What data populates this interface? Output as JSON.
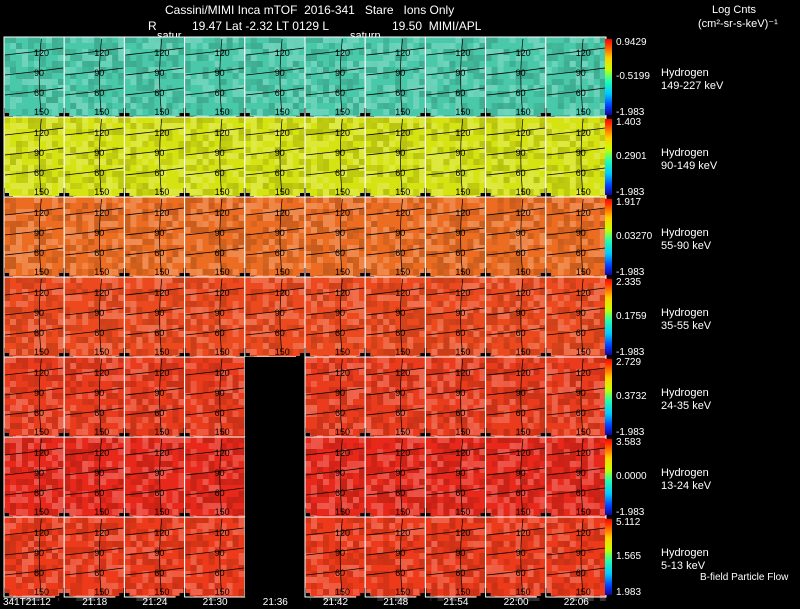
{
  "header": {
    "title": "Cassini/MIMI Inca mTOF  2016-341   Stare   Ions Only",
    "subtitle_r": "R",
    "subtitle_r_val": "19.47 Lat -2.32 LT 0129 L",
    "subtitle_l_val": "19.50  MIMI/APL",
    "saturn_label_1": "satur",
    "saturn_label_2": "saturn",
    "units_title": "Log Cnts",
    "units_expr": "(cm²-sr-s-keV)⁻¹"
  },
  "footer": {
    "bfield_label": "B-field Particle Flow"
  },
  "chart_data": {
    "type": "heatmap",
    "columns": [
      "341T21:12",
      "21:18",
      "21:24",
      "21:30",
      "21:36",
      "21:42",
      "21:48",
      "21:54",
      "22:00",
      "22:06"
    ],
    "contour_levels": [
      "150",
      "120",
      "90",
      "60",
      "30"
    ],
    "rows": [
      {
        "species": "Hydrogen",
        "energy": "149-227 keV",
        "max": "0.9429",
        "mid": "-0.5199",
        "min": "-1.983",
        "color": "#49c9a9",
        "missing_cols": []
      },
      {
        "species": "Hydrogen",
        "energy": "90-149 keV",
        "max": "1.403",
        "mid": "0.2901",
        "min": "-1.983",
        "color": "#d6e312",
        "missing_cols": []
      },
      {
        "species": "Hydrogen",
        "energy": "55-90 keV",
        "max": "1.917",
        "mid": "0.03270",
        "min": "-1.983",
        "color": "#ec6d22",
        "missing_cols": []
      },
      {
        "species": "Hydrogen",
        "energy": "35-55 keV",
        "max": "2.335",
        "mid": "0.1759",
        "min": "-1.983",
        "color": "#ec4a1e",
        "missing_cols": []
      },
      {
        "species": "Hydrogen",
        "energy": "24-35 keV",
        "max": "2.729",
        "mid": "0.3732",
        "min": "-1.983",
        "color": "#ea3b1c",
        "missing_cols": [
          4
        ]
      },
      {
        "species": "Hydrogen",
        "energy": "13-24 keV",
        "max": "3.583",
        "mid": "0.0000",
        "min": "-1.983",
        "color": "#e8281a",
        "missing_cols": [
          4
        ]
      },
      {
        "species": "Hydrogen",
        "energy": "5-13 keV",
        "max": "5.112",
        "mid": "1.565",
        "min": "1.983",
        "color": "#ec3a1a",
        "missing_cols": [
          4
        ]
      }
    ]
  }
}
